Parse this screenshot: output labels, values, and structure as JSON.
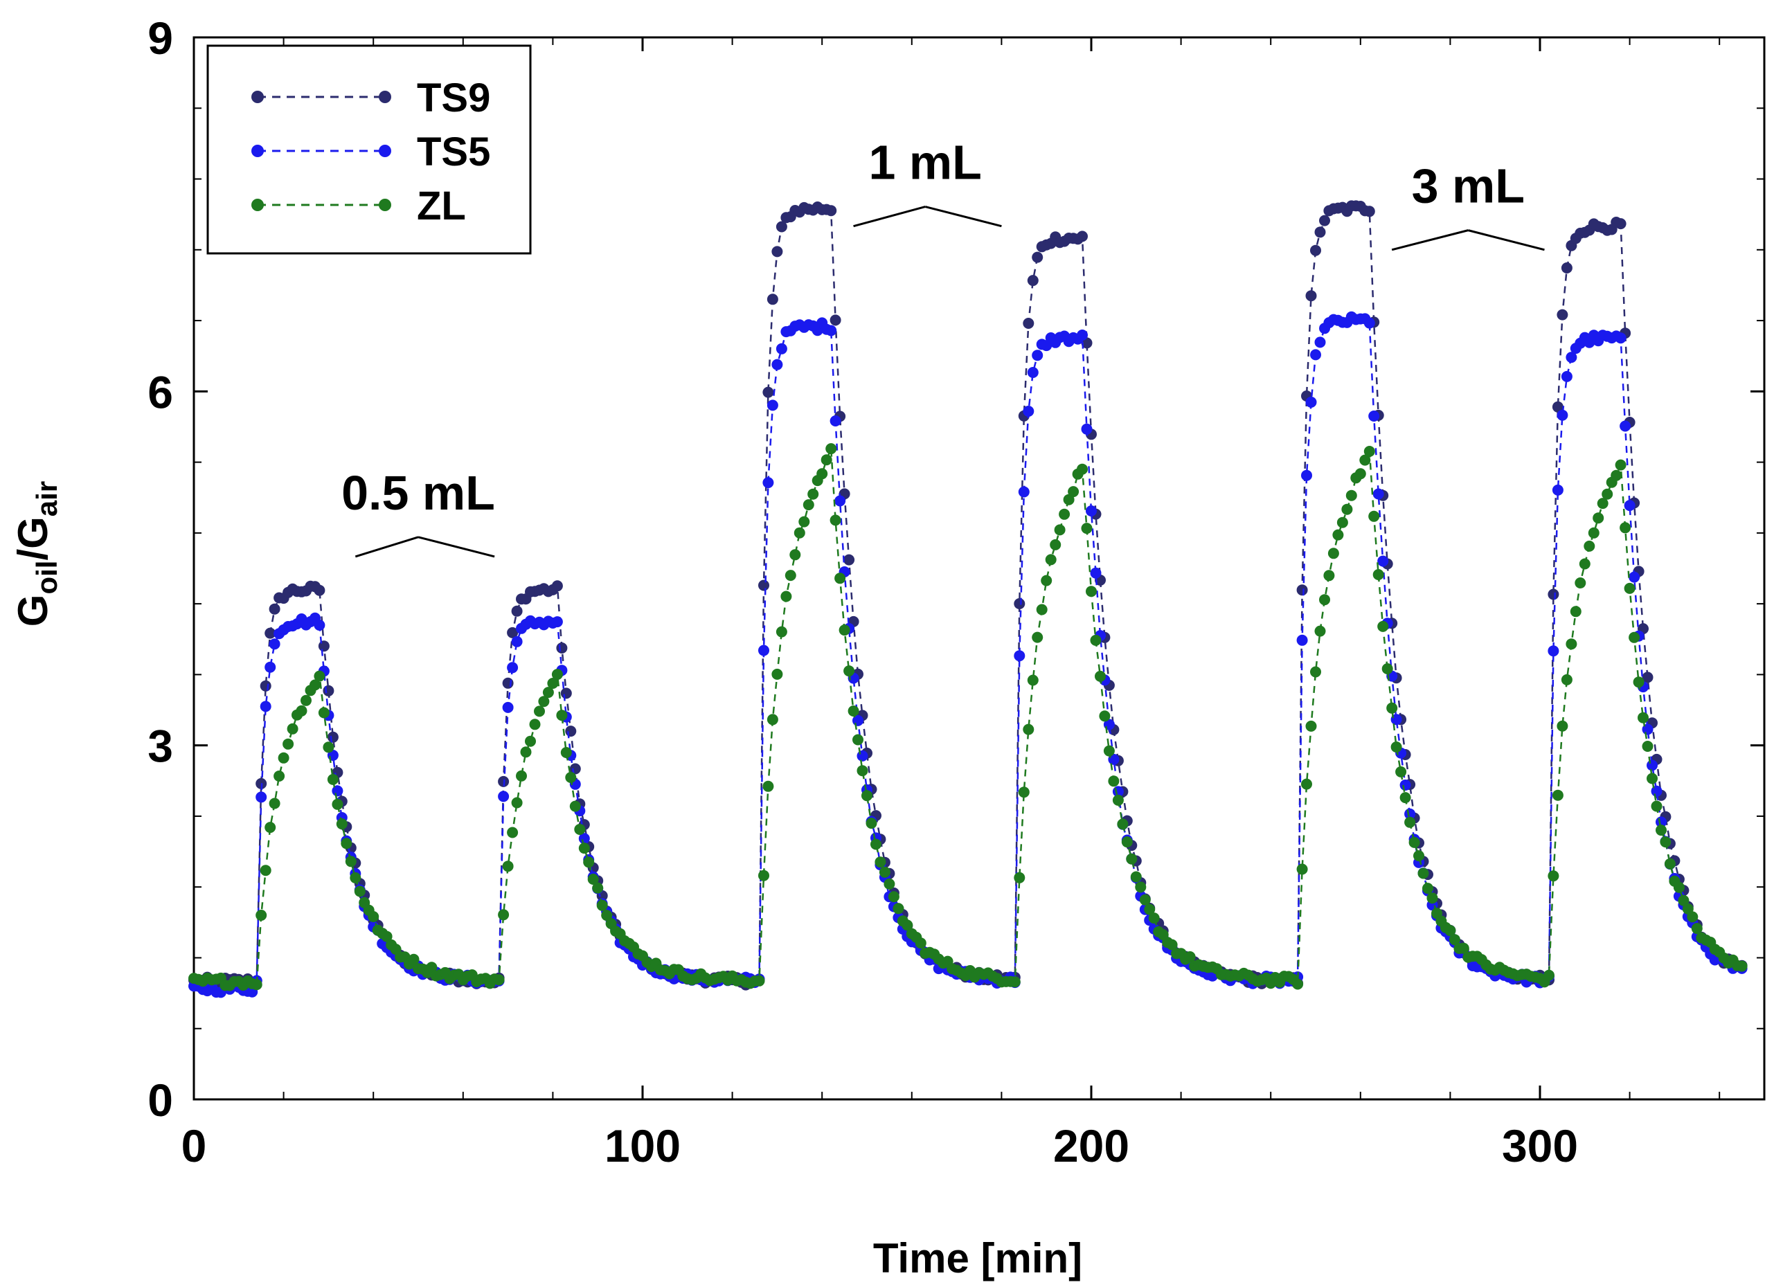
{
  "chart_data": {
    "type": "scatter",
    "xlabel": "Time [min]",
    "ylabel": {
      "base": "G",
      "sub1": "oil",
      "sep": "/G",
      "sub2": "air"
    },
    "xlim": [
      0,
      350
    ],
    "ylim": [
      0,
      9
    ],
    "xticks": [
      0,
      100,
      200,
      300
    ],
    "yticks": [
      0,
      3,
      6,
      9
    ],
    "x_minor_step": 20,
    "y_minor_step": 0.6,
    "grid": false,
    "legend": {
      "position": "top-left",
      "entries": [
        "TS9",
        "TS5",
        "ZL"
      ]
    },
    "sample_step": 1,
    "baseline": 1.0,
    "pulses": [
      {
        "start": 14,
        "end": 28,
        "peaks": [
          4.32,
          4.05,
          3.62
        ]
      },
      {
        "start": 68,
        "end": 81,
        "peaks": [
          4.32,
          4.05,
          3.62
        ]
      },
      {
        "start": 126,
        "end": 142,
        "peaks": [
          7.55,
          6.55,
          5.52
        ]
      },
      {
        "start": 183,
        "end": 198,
        "peaks": [
          7.3,
          6.45,
          5.4
        ]
      },
      {
        "start": 246,
        "end": 262,
        "peaks": [
          7.55,
          6.6,
          5.52
        ]
      },
      {
        "start": 302,
        "end": 318,
        "peaks": [
          7.4,
          6.45,
          5.4
        ]
      }
    ],
    "series": [
      {
        "name": "TS9",
        "color": "#2b2b6e"
      },
      {
        "name": "TS5",
        "color": "#1a1aee"
      },
      {
        "name": "ZL",
        "color": "#1f7a1f"
      }
    ],
    "annotations": [
      {
        "text": "0.5 mL",
        "x": 50,
        "y": 5.0,
        "arrows": [
          [
            36,
            4.6
          ],
          [
            67,
            4.6
          ]
        ]
      },
      {
        "text": "1 mL",
        "x": 163,
        "y": 7.8,
        "arrows": [
          [
            147,
            7.4
          ],
          [
            180,
            7.4
          ]
        ]
      },
      {
        "text": "3 mL",
        "x": 284,
        "y": 7.6,
        "arrows": [
          [
            267,
            7.2
          ],
          [
            301,
            7.2
          ]
        ]
      }
    ]
  }
}
